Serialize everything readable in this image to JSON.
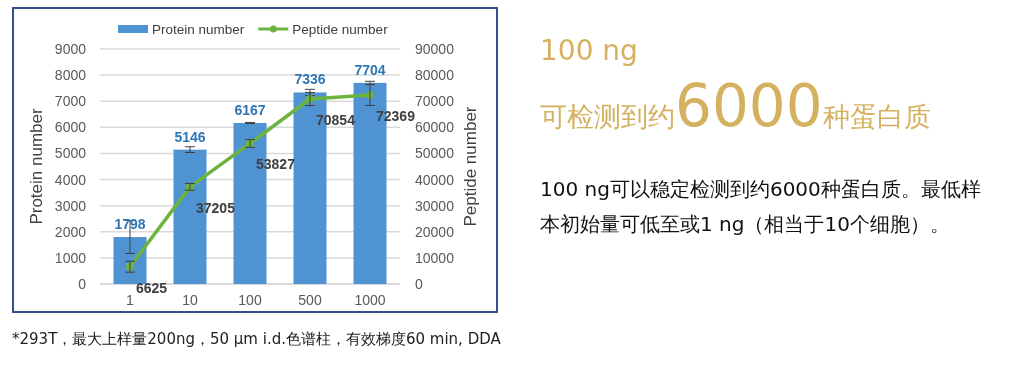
{
  "chart_data": {
    "type": "bar",
    "title": "100 ng",
    "subtitle": "可检测到约**6000**种蛋白质",
    "categories": [
      "1",
      "10",
      "100",
      "500",
      "1000"
    ],
    "series": [
      {
        "name": "Protein number",
        "color": "#4f93d2",
        "values": [
          1798,
          5146,
          6167,
          7336,
          7704
        ],
        "errors": [
          630,
          110,
          20,
          120,
          60
        ]
      },
      {
        "name": "Peptide number",
        "type": "line",
        "axis": "y2",
        "color": "#6db33f",
        "values": [
          6625,
          37205,
          53827,
          70854,
          72369
        ],
        "errors": [
          2100,
          1300,
          1500,
          2500,
          4000
        ]
      }
    ],
    "ylabel": "Protein number",
    "y2label": "Peptide number",
    "ylim": [
      0,
      9000
    ],
    "yticks": [
      0,
      1000,
      2000,
      3000,
      4000,
      5000,
      6000,
      7000,
      8000,
      9000
    ],
    "y2lim": [
      0,
      90000
    ],
    "y2ticks": [
      0,
      10000,
      20000,
      30000,
      40000,
      50000,
      60000,
      70000,
      80000,
      90000
    ],
    "grid": "y",
    "legend": "top",
    "marker": "circle",
    "data_labels": true,
    "annotations": [
      "100 ng可以稳定检测到约6000种蛋白质。最低样本初始量可低至或1 ng（相当于10个细胞）。",
      "*293T，最大上样量200ng，50 μm i.d.色谱柱，有效梯度60 min, DDA"
    ]
  }
}
